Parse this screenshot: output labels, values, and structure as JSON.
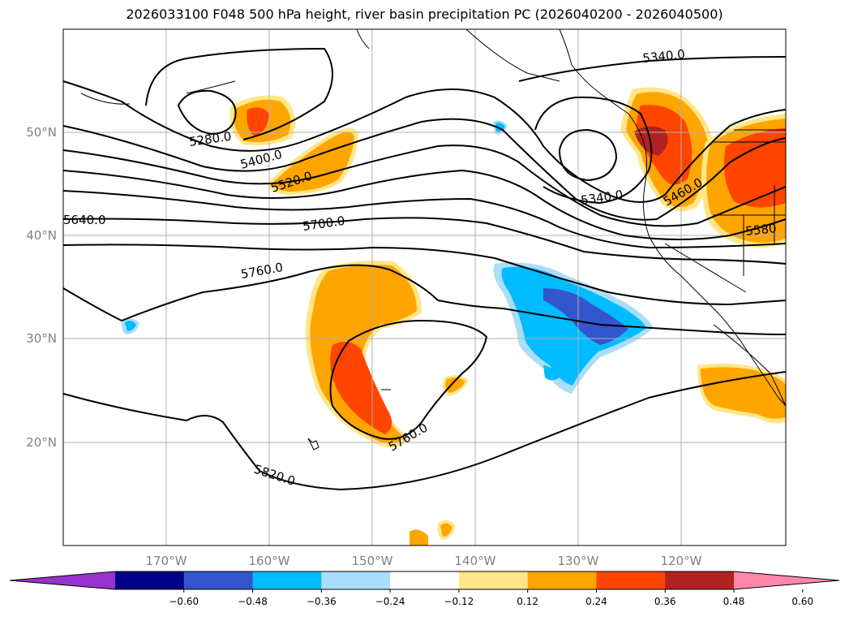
{
  "title": "2026033100 F048 500 hPa height, river basin precipitation PC (2026040200 - 2026040500)",
  "lat_labels": [
    "50°N",
    "40°N",
    "30°N",
    "20°N"
  ],
  "lon_labels": [
    "170°W",
    "160°W",
    "150°W",
    "140°W",
    "130°W",
    "120°W"
  ],
  "contour_labels": [
    "5340.0",
    "5280.0",
    "5400.0",
    "5520.0",
    "5340.0",
    "5460.0",
    "5640.0",
    "5700.0",
    "5580",
    "5760.0",
    "5760.0",
    "5820.0"
  ],
  "colorbar": {
    "ticks": [
      "−0.60",
      "−0.48",
      "−0.36",
      "−0.24",
      "−0.12",
      "0.12",
      "0.24",
      "0.36",
      "0.48",
      "0.60"
    ],
    "colors": [
      "#9933cc",
      "#000088",
      "#3355cc",
      "#00bbff",
      "#aaddf8",
      "#ffffff",
      "#ffe688",
      "#ffa500",
      "#ff4500",
      "#b22222",
      "#ff88aa"
    ]
  },
  "colors": {
    "orange": "#ffa500",
    "red_orange": "#ff4500",
    "dark_red": "#b22222",
    "yellow": "#ffe688",
    "light_blue": "#aaddf8",
    "cyan": "#00bbff",
    "blue": "#3355cc"
  }
}
